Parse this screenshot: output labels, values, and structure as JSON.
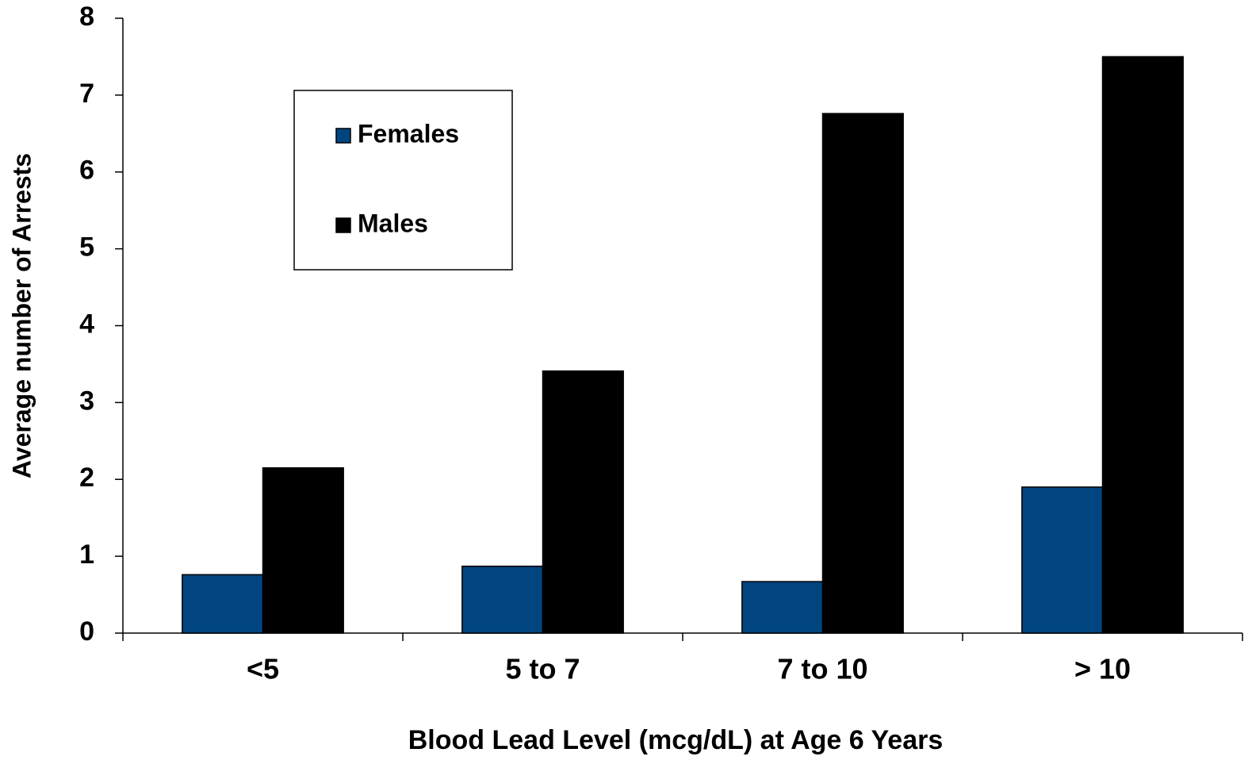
{
  "chart_data": {
    "type": "bar",
    "x_label": "Blood Lead Level (mcg/dL) at Age 6 Years",
    "y_label": "Average number of Arrests",
    "categories": [
      "<5",
      "5 to 7",
      "7 to 10",
      "> 10"
    ],
    "series": [
      {
        "name": "Females",
        "color": "#004580",
        "values": [
          0.76,
          0.87,
          0.67,
          1.9
        ]
      },
      {
        "name": "Males",
        "color": "#000000",
        "values": [
          2.15,
          3.41,
          6.76,
          7.5
        ]
      }
    ],
    "ylim": [
      0,
      8
    ],
    "yticks": [
      0,
      1,
      2,
      3,
      4,
      5,
      6,
      7,
      8
    ],
    "grid": false
  }
}
